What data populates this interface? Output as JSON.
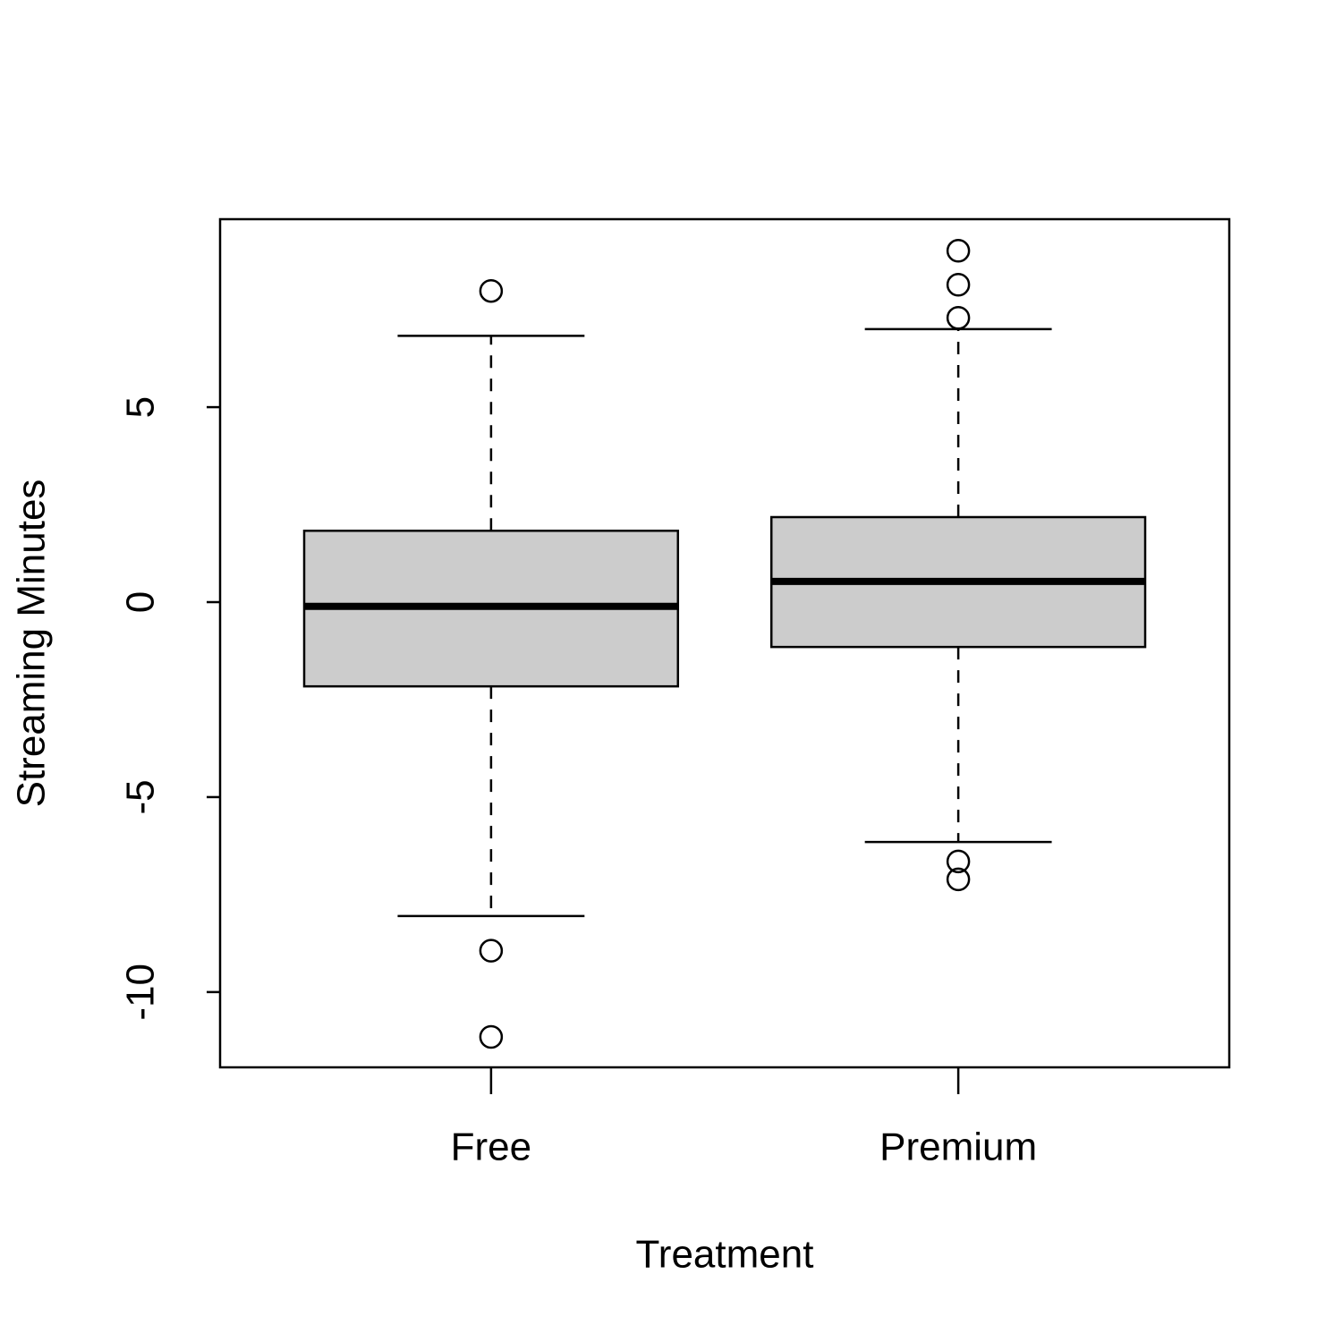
{
  "chart_data": {
    "type": "box",
    "xlabel": "Treatment",
    "ylabel": "Streaming Minutes",
    "categories": [
      "Free",
      "Premium"
    ],
    "color": "#cccccc",
    "ylim": [
      -11.93,
      9.82
    ],
    "yticks": [
      -10,
      -5,
      0,
      5
    ],
    "boxes": [
      {
        "low": -8.05,
        "q1": -2.16,
        "median": -0.11,
        "q3": 1.83,
        "high": 6.83,
        "outliers": [
          7.98,
          -8.94,
          -11.15
        ]
      },
      {
        "low": -6.15,
        "q1": -1.15,
        "median": 0.53,
        "q3": 2.18,
        "high": 7.0,
        "outliers": [
          9.01,
          8.14,
          7.29,
          -6.65,
          -7.11
        ]
      }
    ]
  }
}
